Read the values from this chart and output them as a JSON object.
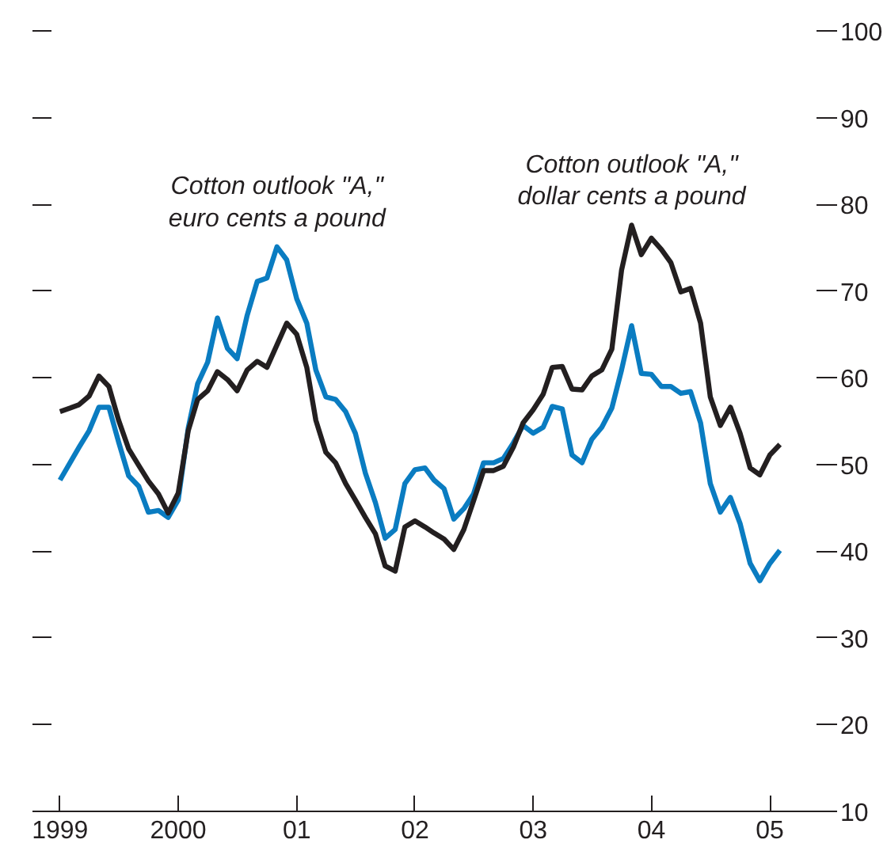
{
  "chart_data": {
    "type": "line",
    "x": [
      "1999-01",
      "1999-02",
      "1999-03",
      "1999-04",
      "1999-05",
      "1999-06",
      "1999-07",
      "1999-08",
      "1999-09",
      "1999-10",
      "1999-11",
      "1999-12",
      "2000-01",
      "2000-02",
      "2000-03",
      "2000-04",
      "2000-05",
      "2000-06",
      "2000-07",
      "2000-08",
      "2000-09",
      "2000-10",
      "2000-11",
      "2000-12",
      "2001-01",
      "2001-02",
      "2001-03",
      "2001-04",
      "2001-05",
      "2001-06",
      "2001-07",
      "2001-08",
      "2001-09",
      "2001-10",
      "2001-11",
      "2001-12",
      "2002-01",
      "2002-02",
      "2002-03",
      "2002-04",
      "2002-05",
      "2002-06",
      "2002-07",
      "2002-08",
      "2002-09",
      "2002-10",
      "2002-11",
      "2002-12",
      "2003-01",
      "2003-02",
      "2003-03",
      "2003-04",
      "2003-05",
      "2003-06",
      "2003-07",
      "2003-08",
      "2003-09",
      "2003-10",
      "2003-11",
      "2003-12",
      "2004-01",
      "2004-02",
      "2004-03",
      "2004-04",
      "2004-05",
      "2004-06",
      "2004-07",
      "2004-08",
      "2004-09",
      "2004-10",
      "2004-11",
      "2004-12",
      "2005-01",
      "2005-02"
    ],
    "series": [
      {
        "name": "Cotton outlook \"A,\"\neuro cents a pound",
        "color": "#0a7cc1",
        "values": [
          48.2,
          50.2,
          52.0,
          53.9,
          56.6,
          56.6,
          52.6,
          48.7,
          47.5,
          44.5,
          44.7,
          43.9,
          45.9,
          54.2,
          59.3,
          61.8,
          66.9,
          63.4,
          62.2,
          67.2,
          71.1,
          71.5,
          75.1,
          73.6,
          69.1,
          66.3,
          60.9,
          57.8,
          57.5,
          56.1,
          53.6,
          49.0,
          45.6,
          41.5,
          42.5,
          47.8,
          49.4,
          49.6,
          48.2,
          47.2,
          43.7,
          44.9,
          46.6,
          50.2,
          50.2,
          50.7,
          52.5,
          54.5,
          53.6,
          54.3,
          56.7,
          56.4,
          51.1,
          50.2,
          52.9,
          54.3,
          56.5,
          60.9,
          66.0,
          60.5,
          60.4,
          59.0,
          59.0,
          58.2,
          58.4,
          54.8,
          47.8,
          44.5,
          46.2,
          43.2,
          38.6,
          36.6,
          38.6,
          40.1
        ]
      },
      {
        "name": "Cotton outlook \"A,\"\ndollar cents a pound",
        "color": "#231f20",
        "values": [
          56.1,
          56.5,
          56.9,
          57.9,
          60.2,
          59.0,
          55.1,
          51.8,
          49.9,
          48.1,
          46.6,
          44.4,
          46.7,
          53.9,
          57.5,
          58.5,
          60.7,
          59.8,
          58.5,
          60.9,
          61.9,
          61.2,
          63.8,
          66.3,
          65.0,
          61.2,
          55.1,
          51.4,
          50.2,
          47.8,
          45.9,
          43.9,
          42.0,
          38.3,
          37.7,
          42.8,
          43.5,
          42.8,
          42.1,
          41.4,
          40.2,
          42.5,
          45.8,
          49.3,
          49.3,
          49.8,
          52.0,
          54.8,
          56.3,
          58.1,
          61.2,
          61.3,
          58.7,
          58.6,
          60.2,
          60.9,
          63.3,
          72.4,
          77.6,
          74.2,
          76.1,
          74.8,
          73.3,
          69.9,
          70.3,
          66.3,
          57.8,
          54.5,
          56.6,
          53.6,
          49.6,
          48.8,
          51.1,
          52.3
        ]
      }
    ],
    "xlim": [
      "1998-10-08",
      "2005-05-25"
    ],
    "xticks": [
      {
        "value": "1999-01",
        "label": "1999"
      },
      {
        "value": "2000-01",
        "label": "2000"
      },
      {
        "value": "2001-01",
        "label": "01"
      },
      {
        "value": "2002-01",
        "label": "02"
      },
      {
        "value": "2003-01",
        "label": "03"
      },
      {
        "value": "2004-01",
        "label": "04"
      },
      {
        "value": "2005-01",
        "label": "05"
      }
    ],
    "ylim": [
      10,
      100
    ],
    "yticks": [
      10,
      20,
      30,
      40,
      50,
      60,
      70,
      80,
      90,
      100
    ]
  }
}
